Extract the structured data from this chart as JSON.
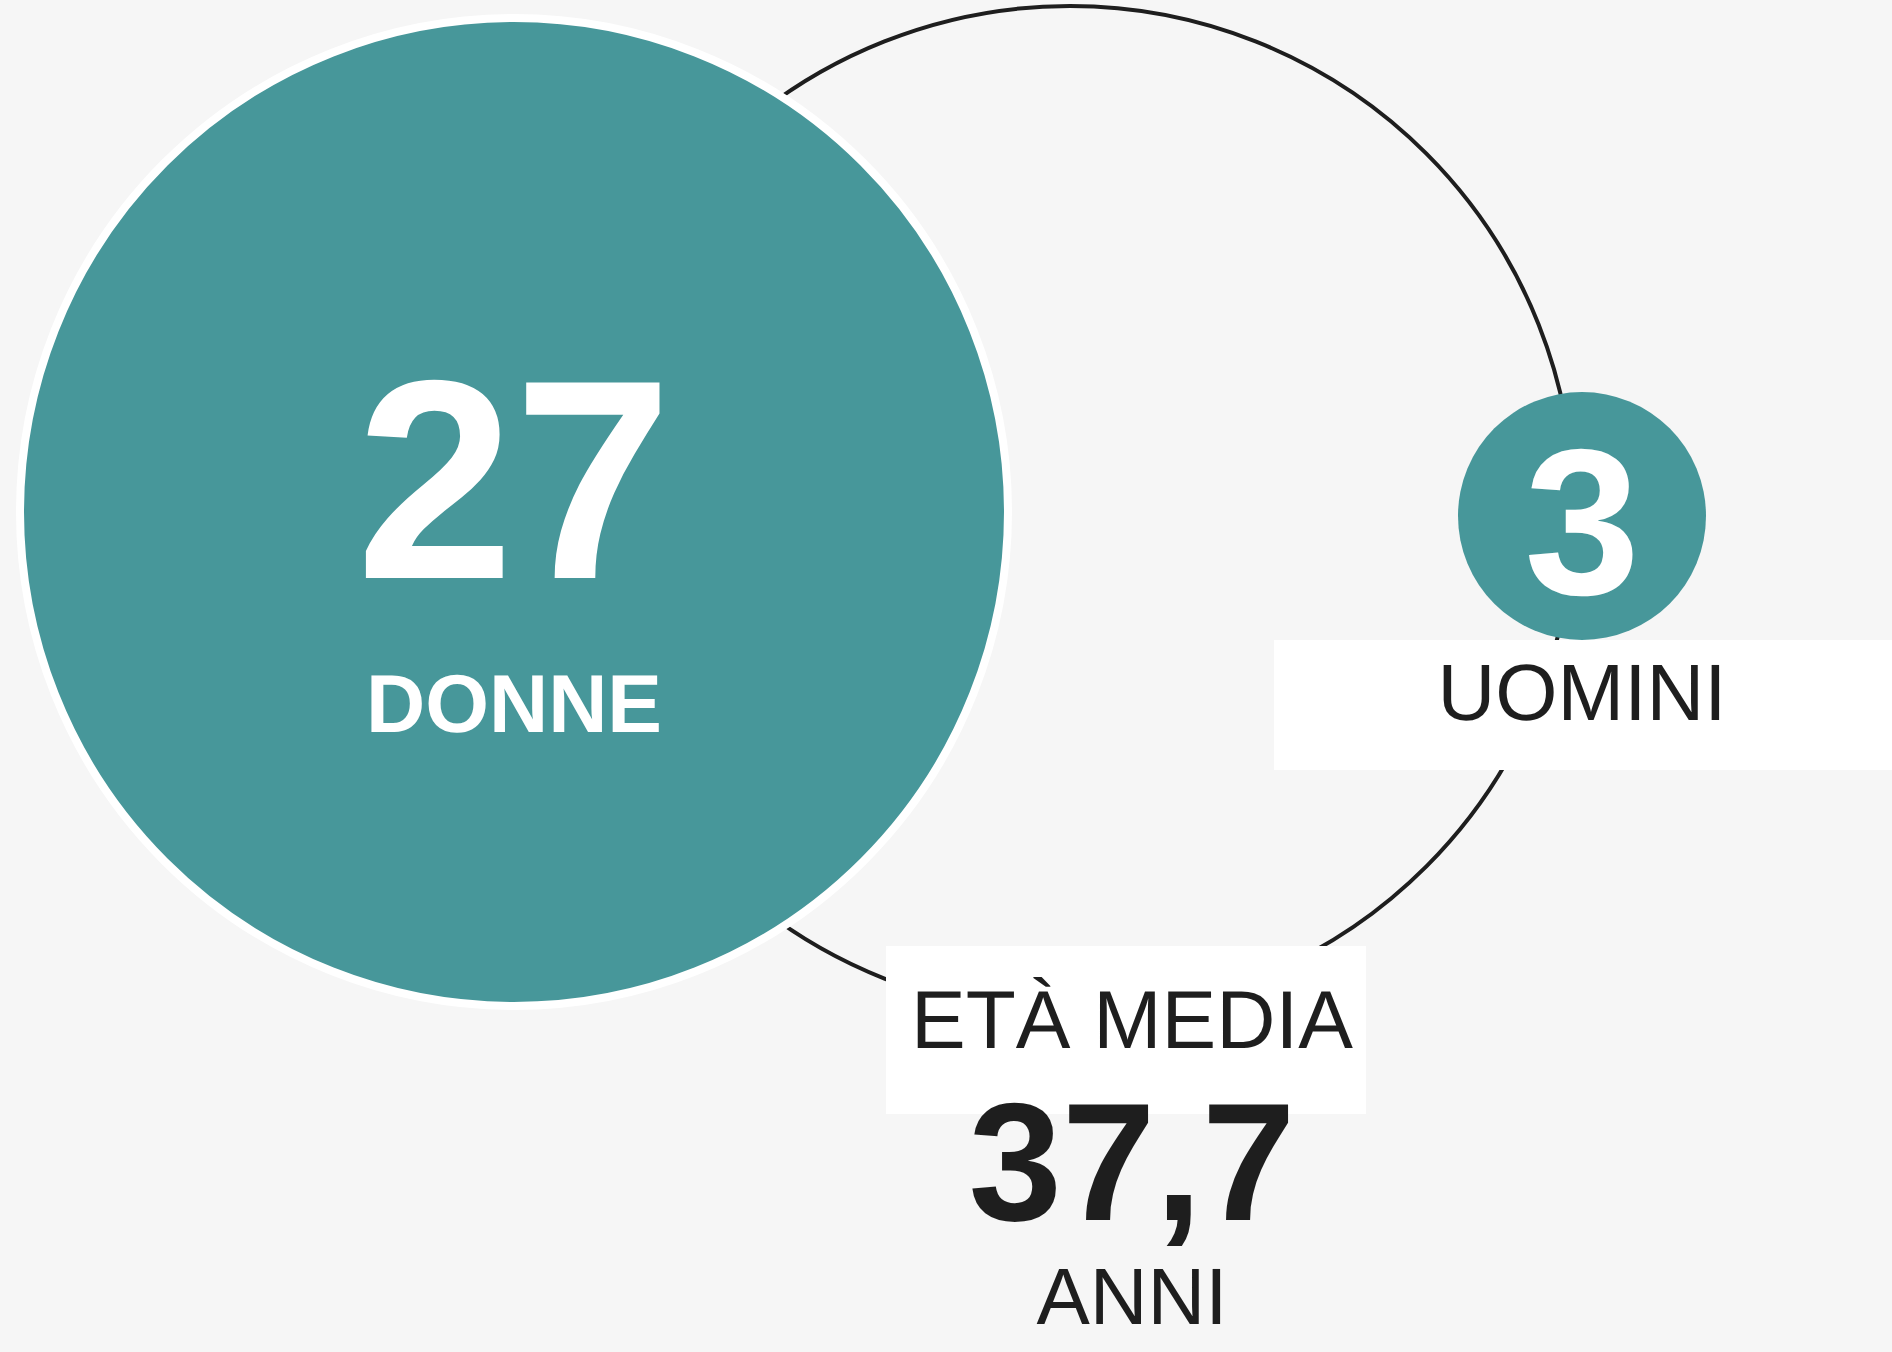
{
  "chart_data": {
    "type": "other",
    "categories": [
      "DONNE",
      "UOMINI"
    ],
    "values": [
      27,
      3
    ],
    "colors": [
      "#47979a",
      "#47979a"
    ],
    "data_labels": true,
    "annotations": [
      "ETÀ MEDIA",
      "37,7",
      "ANNI"
    ]
  }
}
